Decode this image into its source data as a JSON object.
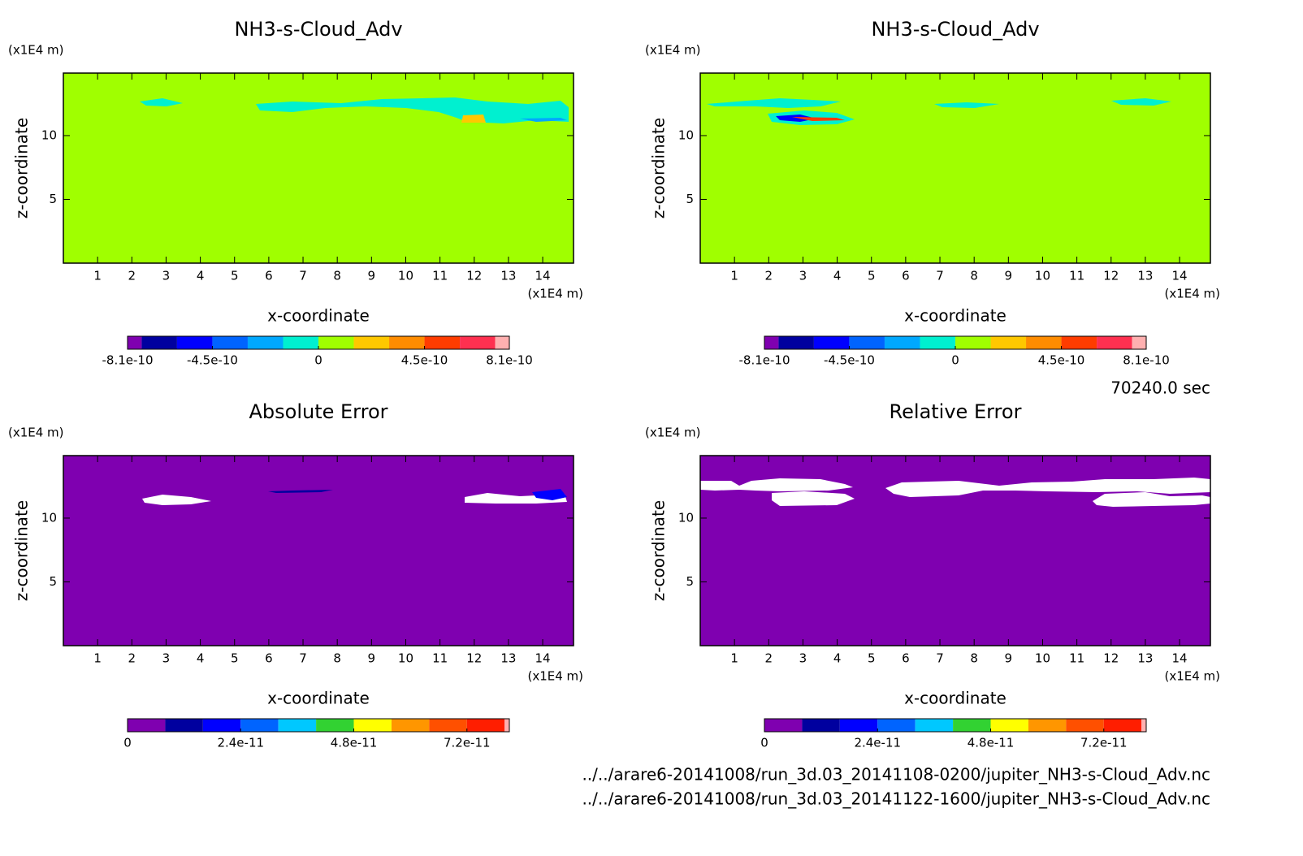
{
  "chart_data": [
    {
      "type": "contour",
      "title": "NH3-s-Cloud_Adv",
      "xlabel": "x-coordinate",
      "ylabel": "z-coordinate",
      "x_unit": "(x1E4 m)",
      "y_unit": "(x1E4 m)",
      "xlim": [
        0,
        14.9
      ],
      "ylim": [
        0,
        14.9
      ],
      "xticks": [
        1,
        2,
        3,
        4,
        5,
        6,
        7,
        8,
        9,
        10,
        11,
        12,
        13,
        14
      ],
      "yticks": [
        5,
        10
      ],
      "background": "#a0ff00",
      "colorbar": {
        "bounds": [
          -8.1e-10,
          -7.5e-10,
          -6e-10,
          -4.5e-10,
          -3e-10,
          -1.5e-10,
          0,
          1.5e-10,
          3e-10,
          4.5e-10,
          6e-10,
          7.5e-10,
          8.1e-10
        ],
        "colors": [
          "#7f00b0",
          "#00009f",
          "#0000ff",
          "#0064ff",
          "#00a8ff",
          "#00f0d0",
          "#a0ff00",
          "#ffc800",
          "#ff8c00",
          "#ff3c00",
          "#ff3050",
          "#ffb0b0"
        ],
        "ticks": [
          -8.1e-10,
          -4.5e-10,
          0,
          4.5e-10,
          8.1e-10
        ]
      }
    },
    {
      "type": "contour",
      "title": "NH3-s-Cloud_Adv",
      "xlabel": "x-coordinate",
      "ylabel": "z-coordinate",
      "x_unit": "(x1E4 m)",
      "y_unit": "(x1E4 m)",
      "xlim": [
        0,
        14.9
      ],
      "ylim": [
        0,
        14.9
      ],
      "xticks": [
        1,
        2,
        3,
        4,
        5,
        6,
        7,
        8,
        9,
        10,
        11,
        12,
        13,
        14
      ],
      "yticks": [
        5,
        10
      ],
      "background": "#a0ff00",
      "colorbar": {
        "bounds": [
          -8.1e-10,
          -7.5e-10,
          -6e-10,
          -4.5e-10,
          -3e-10,
          -1.5e-10,
          0,
          1.5e-10,
          3e-10,
          4.5e-10,
          6e-10,
          7.5e-10,
          8.1e-10
        ],
        "colors": [
          "#7f00b0",
          "#00009f",
          "#0000ff",
          "#0064ff",
          "#00a8ff",
          "#00f0d0",
          "#a0ff00",
          "#ffc800",
          "#ff8c00",
          "#ff3c00",
          "#ff3050",
          "#ffb0b0"
        ],
        "ticks": [
          -8.1e-10,
          -4.5e-10,
          0,
          4.5e-10,
          8.1e-10
        ]
      }
    },
    {
      "type": "contour",
      "title": "Absolute Error",
      "xlabel": "x-coordinate",
      "ylabel": "z-coordinate",
      "x_unit": "(x1E4 m)",
      "y_unit": "(x1E4 m)",
      "xlim": [
        0,
        14.9
      ],
      "ylim": [
        0,
        14.9
      ],
      "xticks": [
        1,
        2,
        3,
        4,
        5,
        6,
        7,
        8,
        9,
        10,
        11,
        12,
        13,
        14
      ],
      "yticks": [
        5,
        10
      ],
      "background": "#7f00b0",
      "colorbar": {
        "bounds": [
          0,
          8e-12,
          1.6e-11,
          2.4e-11,
          3.2e-11,
          4e-11,
          4.8e-11,
          5.6e-11,
          6.4e-11,
          7.2e-11,
          8e-11,
          8.1e-11
        ],
        "colors": [
          "#7f00b0",
          "#00009f",
          "#0000ff",
          "#0064ff",
          "#00c8ff",
          "#32d232",
          "#ffff00",
          "#ff9600",
          "#ff5000",
          "#ff1e00",
          "#ffb0b0"
        ],
        "ticks": [
          0,
          2.4e-11,
          4.8e-11,
          7.2e-11
        ]
      }
    },
    {
      "type": "contour",
      "title": "Relative Error",
      "xlabel": "x-coordinate",
      "ylabel": "z-coordinate",
      "x_unit": "(x1E4 m)",
      "y_unit": "(x1E4 m)",
      "xlim": [
        0,
        14.9
      ],
      "ylim": [
        0,
        14.9
      ],
      "xticks": [
        1,
        2,
        3,
        4,
        5,
        6,
        7,
        8,
        9,
        10,
        11,
        12,
        13,
        14
      ],
      "yticks": [
        5,
        10
      ],
      "background": "#7f00b0",
      "colorbar": {
        "bounds": [
          0,
          8e-12,
          1.6e-11,
          2.4e-11,
          3.2e-11,
          4e-11,
          4.8e-11,
          5.6e-11,
          6.4e-11,
          7.2e-11,
          8e-11,
          8.1e-11
        ],
        "colors": [
          "#7f00b0",
          "#00009f",
          "#0000ff",
          "#0064ff",
          "#00c8ff",
          "#32d232",
          "#ffff00",
          "#ff9600",
          "#ff5000",
          "#ff1e00",
          "#ffb0b0"
        ],
        "ticks": [
          0,
          2.4e-11,
          4.8e-11,
          7.2e-11
        ]
      }
    }
  ],
  "time_label": "70240.0 sec",
  "files": [
    "../../arare6-20141008/run_3d.03_20141108-0200/jupiter_NH3-s-Cloud_Adv.nc",
    "../../arare6-20141008/run_3d.03_20141122-1600/jupiter_NH3-s-Cloud_Adv.nc"
  ]
}
